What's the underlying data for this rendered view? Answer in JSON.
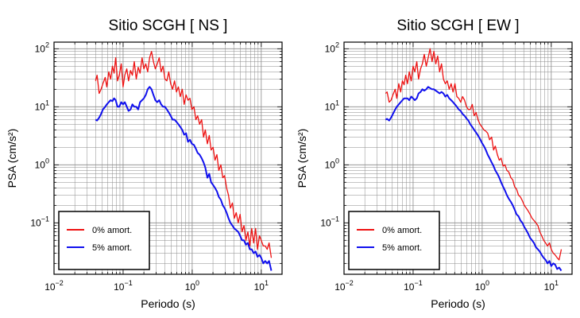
{
  "chart_data": [
    {
      "type": "line",
      "title": "Sitio SCGH [ NS ]",
      "xlabel": "Periodo (s)",
      "ylabel": "PSA (cm/s²)",
      "xscale": "log",
      "yscale": "log",
      "xlim": [
        0.01,
        20
      ],
      "ylim": [
        0.013,
        130
      ],
      "grid": true,
      "legend_position": "bottom-left",
      "x_ticks": [
        {
          "value": 0.01,
          "base": "10",
          "exp": "−2"
        },
        {
          "value": 0.1,
          "base": "10",
          "exp": "−1"
        },
        {
          "value": 1,
          "base": "10",
          "exp": "0"
        },
        {
          "value": 10,
          "base": "10",
          "exp": "1"
        }
      ],
      "y_ticks": [
        {
          "value": 0.1,
          "base": "10",
          "exp": "−1"
        },
        {
          "value": 1,
          "base": "10",
          "exp": "0"
        },
        {
          "value": 10,
          "base": "10",
          "exp": "1"
        },
        {
          "value": 100,
          "base": "10",
          "exp": "2"
        }
      ],
      "series": [
        {
          "name": "0% amort.",
          "color": "#ee1111",
          "x": [
            0.04,
            0.042,
            0.045,
            0.048,
            0.051,
            0.055,
            0.058,
            0.062,
            0.066,
            0.07,
            0.074,
            0.078,
            0.083,
            0.088,
            0.094,
            0.1,
            0.106,
            0.113,
            0.12,
            0.128,
            0.136,
            0.145,
            0.155,
            0.165,
            0.176,
            0.188,
            0.2,
            0.213,
            0.227,
            0.242,
            0.258,
            0.275,
            0.293,
            0.312,
            0.333,
            0.355,
            0.378,
            0.403,
            0.43,
            0.458,
            0.488,
            0.52,
            0.555,
            0.592,
            0.631,
            0.673,
            0.718,
            0.765,
            0.816,
            0.87,
            0.928,
            0.99,
            1.06,
            1.13,
            1.2,
            1.28,
            1.37,
            1.46,
            1.55,
            1.66,
            1.77,
            1.88,
            2.01,
            2.14,
            2.28,
            2.43,
            2.6,
            2.77,
            2.95,
            3.15,
            3.36,
            3.58,
            3.82,
            4.07,
            4.34,
            4.63,
            4.94,
            5.27,
            5.62,
            6.0,
            6.4,
            6.82,
            7.28,
            7.76,
            8.28,
            8.83,
            9.42,
            10.0,
            10.7,
            11.4,
            12.2,
            13.0,
            14.0
          ],
          "y": [
            28,
            35,
            17,
            20,
            25,
            32,
            22,
            40,
            30,
            50,
            38,
            70,
            28,
            35,
            55,
            22,
            35,
            45,
            28,
            42,
            35,
            60,
            30,
            48,
            38,
            70,
            45,
            55,
            40,
            70,
            90,
            60,
            45,
            55,
            70,
            40,
            50,
            30,
            28,
            40,
            25,
            20,
            28,
            18,
            22,
            15,
            20,
            11,
            16,
            13,
            14,
            9,
            10,
            6,
            7,
            5,
            6,
            3,
            4,
            2.3,
            3.2,
            1.8,
            2.0,
            1.2,
            1.5,
            0.8,
            1.0,
            0.6,
            0.65,
            0.4,
            0.3,
            0.18,
            0.22,
            0.12,
            0.15,
            0.1,
            0.14,
            0.07,
            0.09,
            0.05,
            0.07,
            0.04,
            0.08,
            0.045,
            0.08,
            0.035,
            0.06,
            0.05,
            0.04,
            0.04,
            0.035,
            0.045,
            0.025
          ]
        },
        {
          "name": "5% amort.",
          "color": "#1010ee",
          "x": [
            0.04,
            0.042,
            0.045,
            0.048,
            0.051,
            0.055,
            0.058,
            0.062,
            0.066,
            0.07,
            0.074,
            0.078,
            0.083,
            0.088,
            0.094,
            0.1,
            0.106,
            0.113,
            0.12,
            0.128,
            0.136,
            0.145,
            0.155,
            0.165,
            0.176,
            0.188,
            0.2,
            0.213,
            0.227,
            0.242,
            0.258,
            0.275,
            0.293,
            0.312,
            0.333,
            0.355,
            0.378,
            0.403,
            0.43,
            0.458,
            0.488,
            0.52,
            0.555,
            0.592,
            0.631,
            0.673,
            0.718,
            0.765,
            0.816,
            0.87,
            0.928,
            0.99,
            1.06,
            1.13,
            1.2,
            1.28,
            1.37,
            1.46,
            1.55,
            1.66,
            1.77,
            1.88,
            2.01,
            2.14,
            2.28,
            2.43,
            2.6,
            2.77,
            2.95,
            3.15,
            3.36,
            3.58,
            3.82,
            4.07,
            4.34,
            4.63,
            4.94,
            5.27,
            5.62,
            6.0,
            6.4,
            6.82,
            7.28,
            7.76,
            8.28,
            8.83,
            9.42,
            10.0,
            10.7,
            11.4,
            12.2,
            13.0,
            14.0
          ],
          "y": [
            6,
            5.8,
            6.5,
            7.5,
            9,
            10,
            11,
            12,
            13,
            12.5,
            14,
            13,
            10,
            10,
            12,
            11,
            12,
            10,
            8.5,
            9,
            11,
            10,
            10,
            9,
            12,
            13,
            14,
            16,
            20,
            22,
            20,
            16,
            13,
            12,
            13,
            11,
            10,
            10,
            9,
            8,
            7,
            6,
            6,
            5.5,
            5,
            4.5,
            4,
            3.3,
            3.5,
            2.5,
            2.7,
            2.3,
            2.2,
            1.9,
            1.6,
            1.5,
            1.3,
            1.1,
            0.9,
            0.6,
            0.7,
            0.5,
            0.45,
            0.4,
            0.35,
            0.28,
            0.25,
            0.2,
            0.18,
            0.15,
            0.12,
            0.1,
            0.09,
            0.08,
            0.075,
            0.07,
            0.06,
            0.05,
            0.05,
            0.042,
            0.045,
            0.035,
            0.035,
            0.03,
            0.032,
            0.026,
            0.028,
            0.025,
            0.02,
            0.022,
            0.02,
            0.022,
            0.015
          ]
        }
      ]
    },
    {
      "type": "line",
      "title": "Sitio SCGH [ EW ]",
      "xlabel": "Periodo (s)",
      "ylabel": "PSA (cm/s²)",
      "xscale": "log",
      "yscale": "log",
      "xlim": [
        0.01,
        20
      ],
      "ylim": [
        0.013,
        130
      ],
      "grid": true,
      "legend_position": "bottom-left",
      "x_ticks": [
        {
          "value": 0.01,
          "base": "10",
          "exp": "−2"
        },
        {
          "value": 0.1,
          "base": "10",
          "exp": "−1"
        },
        {
          "value": 1,
          "base": "10",
          "exp": "0"
        },
        {
          "value": 10,
          "base": "10",
          "exp": "1"
        }
      ],
      "y_ticks": [
        {
          "value": 0.1,
          "base": "10",
          "exp": "−1"
        },
        {
          "value": 1,
          "base": "10",
          "exp": "0"
        },
        {
          "value": 10,
          "base": "10",
          "exp": "1"
        },
        {
          "value": 100,
          "base": "10",
          "exp": "2"
        }
      ],
      "series": [
        {
          "name": "0% amort.",
          "color": "#ee1111",
          "x": [
            0.04,
            0.042,
            0.045,
            0.048,
            0.051,
            0.055,
            0.058,
            0.062,
            0.066,
            0.07,
            0.074,
            0.078,
            0.083,
            0.088,
            0.094,
            0.1,
            0.106,
            0.113,
            0.12,
            0.128,
            0.136,
            0.145,
            0.155,
            0.165,
            0.176,
            0.188,
            0.2,
            0.213,
            0.227,
            0.242,
            0.258,
            0.275,
            0.293,
            0.312,
            0.333,
            0.355,
            0.378,
            0.403,
            0.43,
            0.458,
            0.488,
            0.52,
            0.555,
            0.592,
            0.631,
            0.673,
            0.718,
            0.765,
            0.816,
            0.87,
            0.928,
            0.99,
            1.06,
            1.13,
            1.2,
            1.28,
            1.37,
            1.46,
            1.55,
            1.66,
            1.77,
            1.88,
            2.01,
            2.14,
            2.28,
            2.43,
            2.6,
            2.77,
            2.95,
            3.15,
            3.36,
            3.58,
            3.82,
            4.07,
            4.34,
            4.63,
            4.94,
            5.27,
            5.62,
            6.0,
            6.4,
            6.82,
            7.28,
            7.76,
            8.28,
            8.83,
            9.42,
            10.0,
            10.7,
            11.4,
            12.2,
            13.0,
            14.0
          ],
          "y": [
            17,
            18,
            12,
            13,
            16,
            20,
            14,
            25,
            18,
            28,
            24,
            35,
            25,
            40,
            28,
            50,
            40,
            60,
            30,
            45,
            55,
            80,
            50,
            70,
            100,
            60,
            90,
            55,
            75,
            40,
            55,
            30,
            25,
            28,
            20,
            25,
            18,
            25,
            15,
            14,
            12,
            15,
            13,
            10,
            9,
            9,
            11,
            7,
            8,
            6,
            5,
            4.5,
            4,
            3.8,
            3.5,
            2.7,
            3,
            1.8,
            2.1,
            1.5,
            1.2,
            1.3,
            0.95,
            1.0,
            0.8,
            0.75,
            0.6,
            0.55,
            0.42,
            0.38,
            0.3,
            0.28,
            0.24,
            0.2,
            0.18,
            0.16,
            0.14,
            0.12,
            0.11,
            0.1,
            0.09,
            0.07,
            0.06,
            0.05,
            0.045,
            0.04,
            0.045,
            0.035,
            0.03,
            0.028,
            0.025,
            0.023,
            0.035
          ]
        },
        {
          "name": "5% amort.",
          "color": "#1010ee",
          "x": [
            0.04,
            0.042,
            0.045,
            0.048,
            0.051,
            0.055,
            0.058,
            0.062,
            0.066,
            0.07,
            0.074,
            0.078,
            0.083,
            0.088,
            0.094,
            0.1,
            0.106,
            0.113,
            0.12,
            0.128,
            0.136,
            0.145,
            0.155,
            0.165,
            0.176,
            0.188,
            0.2,
            0.213,
            0.227,
            0.242,
            0.258,
            0.275,
            0.293,
            0.312,
            0.333,
            0.355,
            0.378,
            0.403,
            0.43,
            0.458,
            0.488,
            0.52,
            0.555,
            0.592,
            0.631,
            0.673,
            0.718,
            0.765,
            0.816,
            0.87,
            0.928,
            0.99,
            1.06,
            1.13,
            1.2,
            1.28,
            1.37,
            1.46,
            1.55,
            1.66,
            1.77,
            1.88,
            2.01,
            2.14,
            2.28,
            2.43,
            2.6,
            2.77,
            2.95,
            3.15,
            3.36,
            3.58,
            3.82,
            4.07,
            4.34,
            4.63,
            4.94,
            5.27,
            5.62,
            6.0,
            6.4,
            6.82,
            7.28,
            7.76,
            8.28,
            8.83,
            9.42,
            10.0,
            10.7,
            11.4,
            12.2,
            13.0,
            14.0
          ],
          "y": [
            6,
            6.2,
            5.8,
            6.5,
            7.5,
            9,
            10,
            11,
            12,
            13,
            14,
            14,
            14,
            13,
            15,
            14,
            13,
            14,
            17,
            18,
            20,
            19,
            20,
            22,
            21,
            20,
            20,
            19,
            18,
            17,
            18,
            17,
            15,
            16,
            14,
            13,
            12,
            11,
            10,
            9,
            8.5,
            7.5,
            7,
            6.3,
            5.8,
            5,
            4.5,
            4,
            3.6,
            3.2,
            2.8,
            2.4,
            2.1,
            1.8,
            1.5,
            1.3,
            1.1,
            0.95,
            0.8,
            0.7,
            0.6,
            0.5,
            0.42,
            0.36,
            0.3,
            0.26,
            0.23,
            0.2,
            0.17,
            0.14,
            0.13,
            0.11,
            0.1,
            0.085,
            0.075,
            0.065,
            0.055,
            0.05,
            0.045,
            0.038,
            0.035,
            0.032,
            0.028,
            0.025,
            0.023,
            0.02,
            0.022,
            0.018,
            0.02,
            0.019,
            0.016,
            0.017,
            0.015
          ]
        }
      ]
    }
  ]
}
